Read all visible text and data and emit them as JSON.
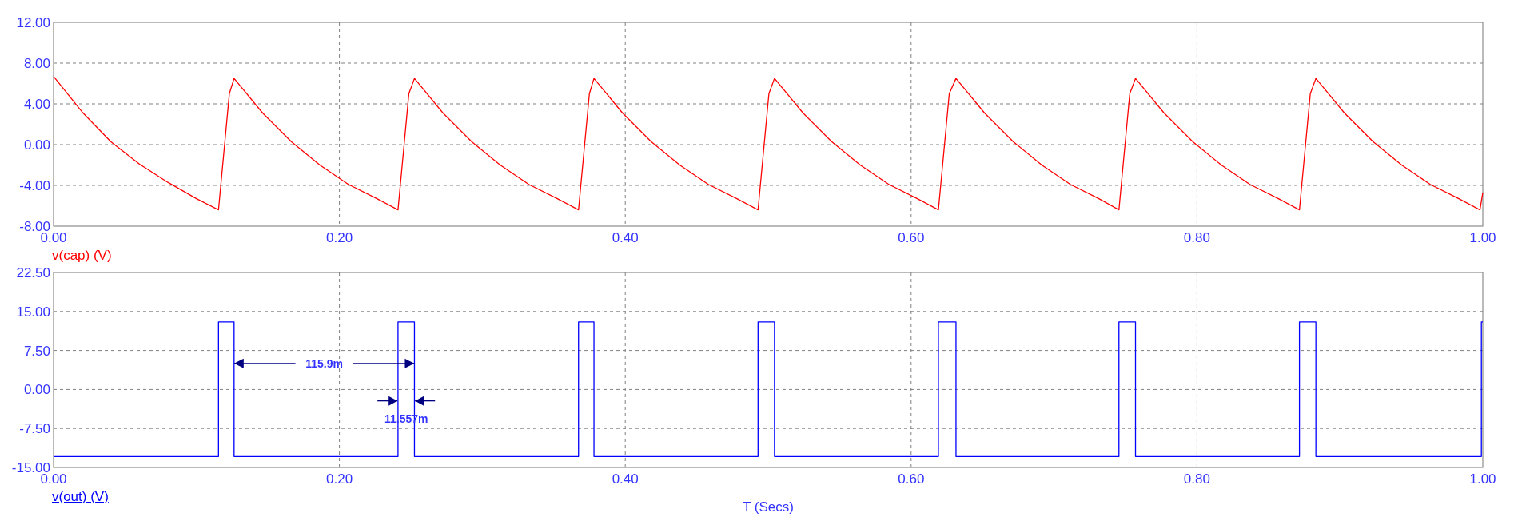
{
  "chart_data": [
    {
      "type": "line",
      "legend": "bottom left",
      "grid": true,
      "tick_labels": "y",
      "xlim": [
        0,
        1
      ],
      "ylim": [
        -8,
        12
      ],
      "xticks": [
        {
          "value": 0,
          "label": "0.00"
        },
        {
          "value": 0.2,
          "label": "0.20"
        },
        {
          "value": 0.4,
          "label": "0.40"
        },
        {
          "value": 0.6,
          "label": "0.60"
        },
        {
          "value": 0.8,
          "label": "0.80"
        },
        {
          "value": 1,
          "label": "1.00"
        }
      ],
      "yticks": [
        {
          "value": -8,
          "label": "-8.00"
        },
        {
          "value": -4,
          "label": "-4.00"
        },
        {
          "value": 0,
          "label": "0.00"
        },
        {
          "value": 4,
          "label": "4.00"
        },
        {
          "value": 8,
          "label": "8.00"
        },
        {
          "value": 12,
          "label": "12.00"
        }
      ],
      "series": [
        {
          "name": "v(cap) (V)",
          "color": "#ff0000",
          "x": [
            0,
            0.02,
            0.04,
            0.06,
            0.08,
            0.1,
            0.1154,
            0.119,
            0.123,
            0.1263,
            0.1463,
            0.1663,
            0.1863,
            0.2063,
            0.2263,
            0.241,
            0.2446,
            0.2486,
            0.2525,
            0.2725,
            0.2925,
            0.3125,
            0.3325,
            0.3525,
            0.3673,
            0.3709,
            0.3749,
            0.3781,
            0.3981,
            0.4181,
            0.4381,
            0.4581,
            0.4781,
            0.4929,
            0.4965,
            0.5005,
            0.5044,
            0.5244,
            0.5444,
            0.5644,
            0.5844,
            0.6044,
            0.6191,
            0.6227,
            0.6267,
            0.6314,
            0.6514,
            0.6714,
            0.6914,
            0.7114,
            0.7314,
            0.7454,
            0.749,
            0.753,
            0.757,
            0.777,
            0.797,
            0.817,
            0.837,
            0.857,
            0.8717,
            0.8753,
            0.8793,
            0.8832,
            0.9032,
            0.9232,
            0.9432,
            0.9632,
            0.9832,
            0.998,
            1.0
          ],
          "values": [
            6.7,
            3.2,
            0.3,
            -1.9,
            -3.7,
            -5.3,
            -6.4,
            -1.0,
            5.0,
            6.5,
            3.1,
            0.3,
            -2.0,
            -3.9,
            -5.3,
            -6.4,
            -1.0,
            5.0,
            6.5,
            3.1,
            0.3,
            -2.0,
            -3.9,
            -5.3,
            -6.4,
            -1.0,
            5.0,
            6.5,
            3.1,
            0.3,
            -2.0,
            -3.9,
            -5.3,
            -6.4,
            -1.0,
            5.0,
            6.5,
            3.1,
            0.3,
            -2.0,
            -3.9,
            -5.3,
            -6.4,
            -1.0,
            5.0,
            6.5,
            3.1,
            0.3,
            -2.0,
            -3.9,
            -5.3,
            -6.4,
            -1.0,
            5.0,
            6.5,
            3.1,
            0.3,
            -2.0,
            -3.9,
            -5.3,
            -6.4,
            -1.0,
            5.0,
            6.5,
            3.1,
            0.3,
            -2.0,
            -3.9,
            -5.3,
            -6.4,
            -4.7
          ]
        }
      ]
    },
    {
      "type": "step",
      "legend": "bottom left",
      "xlabel": "T (Secs)",
      "grid": true,
      "xlim": [
        0,
        1
      ],
      "ylim": [
        -15,
        22.5
      ],
      "xticks": [
        {
          "value": 0,
          "label": "0.00"
        },
        {
          "value": 0.2,
          "label": "0.20"
        },
        {
          "value": 0.4,
          "label": "0.40"
        },
        {
          "value": 0.6,
          "label": "0.60"
        },
        {
          "value": 0.8,
          "label": "0.80"
        },
        {
          "value": 1,
          "label": "1.00"
        }
      ],
      "yticks": [
        {
          "value": -15,
          "label": "-15.00"
        },
        {
          "value": -7.5,
          "label": "-7.50"
        },
        {
          "value": 0,
          "label": "0.00"
        },
        {
          "value": 7.5,
          "label": "7.50"
        },
        {
          "value": 15,
          "label": "15.00"
        },
        {
          "value": 22.5,
          "label": "22.50"
        }
      ],
      "annotations": [
        {
          "text": "115.9m",
          "x": 0.2525,
          "y": 5
        },
        {
          "text": "11.557m",
          "x": 0.2525,
          "y": -2.5
        }
      ],
      "series": [
        {
          "name": "v(out) (V)",
          "color": "#0000ff",
          "x": [
            0,
            0.1154,
            0.1263,
            0.241,
            0.2525,
            0.3673,
            0.3781,
            0.4929,
            0.5044,
            0.6191,
            0.6314,
            0.7454,
            0.757,
            0.8717,
            0.8832,
            0.999,
            1.0
          ],
          "values": [
            -12.9,
            13,
            -12.9,
            13,
            -12.9,
            13,
            -12.9,
            13,
            -12.9,
            13,
            -12.9,
            13,
            -12.9,
            13,
            -12.9,
            13,
            13
          ]
        }
      ]
    }
  ]
}
